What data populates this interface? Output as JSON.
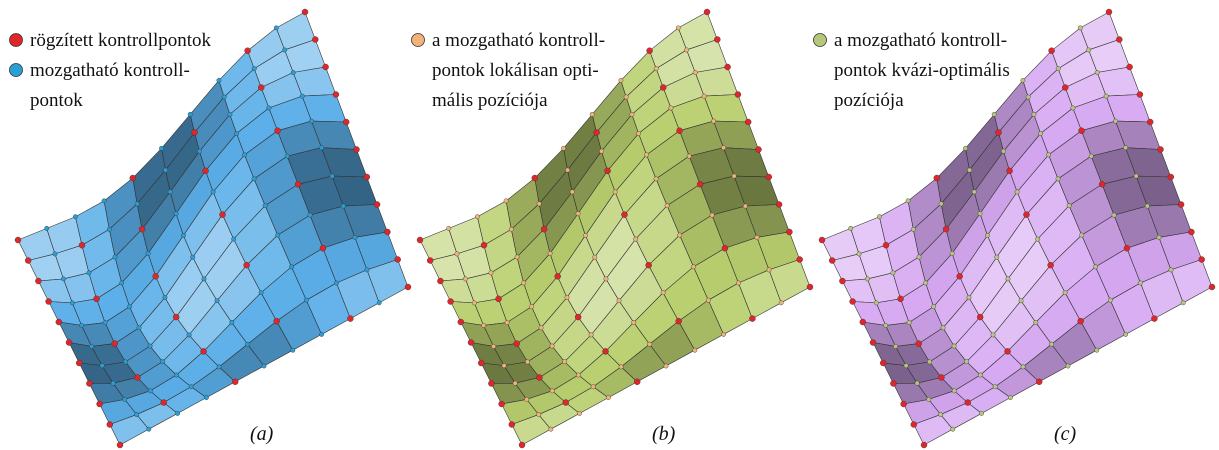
{
  "panels": [
    {
      "caption": "(a)",
      "surface_color": "#5aaee8",
      "legend": [
        {
          "color": "#e0262a",
          "lines": [
            "rögzített kontrollpontok"
          ]
        },
        {
          "color": "#2a9fd6",
          "lines": [
            "mozgatható kontroll-",
            "pontok"
          ]
        }
      ]
    },
    {
      "caption": "(b)",
      "surface_color": "#b9cf6e",
      "legend": [
        {
          "color": "#f2b27a",
          "lines": [
            "a mozgatható kontroll-",
            "pontok lokálisan opti-",
            "mális pozíciója"
          ]
        }
      ]
    },
    {
      "caption": "(c)",
      "surface_color": "#d6a8f2",
      "legend": [
        {
          "color": "#b5c77a",
          "lines": [
            "a mozgatható kontroll-",
            "pontok kvázi-optimális",
            "pozíciója"
          ]
        }
      ]
    }
  ]
}
